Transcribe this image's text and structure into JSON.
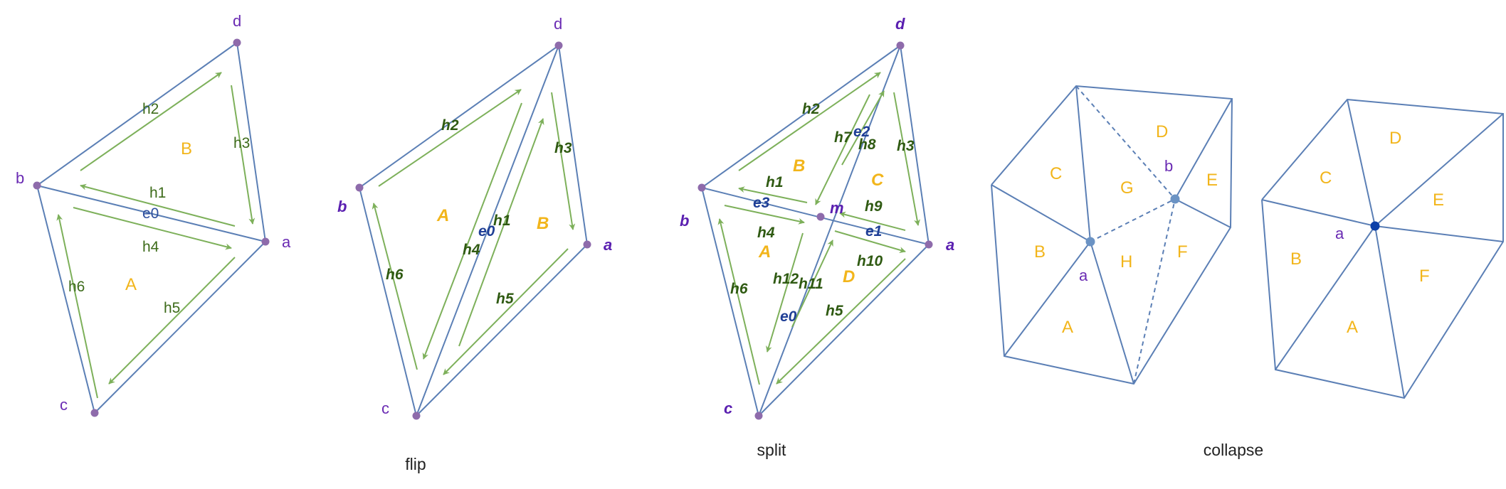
{
  "panels": {
    "original": {
      "vertices": {
        "a": "a",
        "b": "b",
        "c": "c",
        "d": "d"
      },
      "halfedges": [
        "h1",
        "h2",
        "h3",
        "h4",
        "h5",
        "h6"
      ],
      "edges": [
        "e0"
      ],
      "faces": [
        "A",
        "B"
      ]
    },
    "flip": {
      "caption": "flip",
      "vertices": {
        "a": "a",
        "b": "b",
        "c": "c",
        "d": "d"
      },
      "halfedges": [
        "h1",
        "h2",
        "h3",
        "h4",
        "h5",
        "h6"
      ],
      "edges": [
        "e0"
      ],
      "faces": [
        "A",
        "B"
      ]
    },
    "split": {
      "caption": "split",
      "vertices": {
        "a": "a",
        "b": "b",
        "c": "c",
        "d": "d",
        "m": "m"
      },
      "halfedges": [
        "h1",
        "h2",
        "h3",
        "h4",
        "h5",
        "h6",
        "h7",
        "h8",
        "h9",
        "h10",
        "h11",
        "h12"
      ],
      "edges": [
        "e0",
        "e1",
        "e2",
        "e3"
      ],
      "faces": [
        "A",
        "B",
        "C",
        "D"
      ]
    },
    "collapse": {
      "caption": "collapse",
      "before": {
        "vertices": {
          "a": "a",
          "b": "b"
        },
        "faces": [
          "A",
          "B",
          "C",
          "D",
          "E",
          "F",
          "G",
          "H"
        ]
      },
      "after": {
        "vertices": {
          "a": "a"
        },
        "faces": [
          "A",
          "B",
          "C",
          "D",
          "E",
          "F"
        ]
      }
    }
  },
  "colors": {
    "edge": "#5b7fb5",
    "halfedge": "#7db05a",
    "face_label": "#f2b51b",
    "vertex_label": "#6a2bb3",
    "edge_label": "#2e4f9e"
  }
}
